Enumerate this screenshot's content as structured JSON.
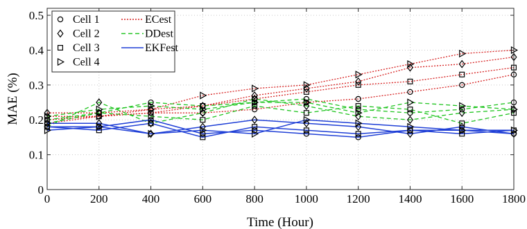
{
  "chart_data": {
    "type": "line",
    "title": "",
    "xlabel": "Time (Hour)",
    "ylabel": "MAE (%)",
    "xlim": [
      0,
      1800
    ],
    "ylim": [
      0,
      0.52
    ],
    "xticks": [
      0,
      200,
      400,
      600,
      800,
      1000,
      1200,
      1400,
      1600,
      1800
    ],
    "yticks": [
      0,
      0.1,
      0.2,
      0.3,
      0.4,
      0.5
    ],
    "xtick_labels": [
      "0",
      "200",
      "400",
      "600",
      "800",
      "1000",
      "1200",
      "1400",
      "1600",
      "1800"
    ],
    "ytick_labels": [
      "0",
      "0.1",
      "0.2",
      "0.3",
      "0.4",
      "0.5"
    ],
    "grid": true,
    "legend_position": "top-left",
    "x": [
      0,
      200,
      400,
      600,
      800,
      1000,
      1200,
      1400,
      1600,
      1800
    ],
    "cells": [
      {
        "name": "Cell 1",
        "marker": "circle"
      },
      {
        "name": "Cell 2",
        "marker": "diamond"
      },
      {
        "name": "Cell 3",
        "marker": "square"
      },
      {
        "name": "Cell 4",
        "marker": "triangle-right"
      }
    ],
    "methods": [
      {
        "name": "ECest",
        "color": "#d62020",
        "dash": "2,2"
      },
      {
        "name": "DDest",
        "color": "#1fc41f",
        "dash": "6,4"
      },
      {
        "name": "EKFest",
        "color": "#1f3fd6",
        "dash": ""
      }
    ],
    "series": [
      {
        "method": "ECest",
        "cell": "Cell 1",
        "values": [
          0.21,
          0.21,
          0.22,
          0.22,
          0.23,
          0.25,
          0.26,
          0.28,
          0.3,
          0.33
        ]
      },
      {
        "method": "ECest",
        "cell": "Cell 2",
        "values": [
          0.22,
          0.22,
          0.23,
          0.24,
          0.27,
          0.29,
          0.31,
          0.35,
          0.36,
          0.38
        ]
      },
      {
        "method": "ECest",
        "cell": "Cell 3",
        "values": [
          0.2,
          0.21,
          0.22,
          0.24,
          0.26,
          0.28,
          0.3,
          0.31,
          0.33,
          0.35
        ]
      },
      {
        "method": "ECest",
        "cell": "Cell 4",
        "values": [
          0.19,
          0.21,
          0.23,
          0.27,
          0.29,
          0.3,
          0.33,
          0.36,
          0.39,
          0.4
        ]
      },
      {
        "method": "DDest",
        "cell": "Cell 1",
        "values": [
          0.19,
          0.22,
          0.25,
          0.24,
          0.25,
          0.26,
          0.23,
          0.22,
          0.23,
          0.25
        ]
      },
      {
        "method": "DDest",
        "cell": "Cell 2",
        "values": [
          0.18,
          0.25,
          0.19,
          0.22,
          0.26,
          0.24,
          0.21,
          0.2,
          0.22,
          0.23
        ]
      },
      {
        "method": "DDest",
        "cell": "Cell 3",
        "values": [
          0.2,
          0.22,
          0.21,
          0.2,
          0.24,
          0.22,
          0.24,
          0.23,
          0.19,
          0.22
        ]
      },
      {
        "method": "DDest",
        "cell": "Cell 4",
        "values": [
          0.21,
          0.23,
          0.24,
          0.23,
          0.25,
          0.25,
          0.22,
          0.25,
          0.24,
          0.23
        ]
      },
      {
        "method": "EKFest",
        "cell": "Cell 1",
        "values": [
          0.18,
          0.18,
          0.2,
          0.16,
          0.17,
          0.16,
          0.15,
          0.17,
          0.17,
          0.16
        ]
      },
      {
        "method": "EKFest",
        "cell": "Cell 2",
        "values": [
          0.19,
          0.19,
          0.16,
          0.18,
          0.2,
          0.19,
          0.18,
          0.16,
          0.18,
          0.16
        ]
      },
      {
        "method": "EKFest",
        "cell": "Cell 3",
        "values": [
          0.18,
          0.17,
          0.19,
          0.15,
          0.18,
          0.17,
          0.16,
          0.17,
          0.16,
          0.17
        ]
      },
      {
        "method": "EKFest",
        "cell": "Cell 4",
        "values": [
          0.17,
          0.18,
          0.16,
          0.17,
          0.16,
          0.2,
          0.19,
          0.18,
          0.17,
          0.17
        ]
      }
    ]
  }
}
